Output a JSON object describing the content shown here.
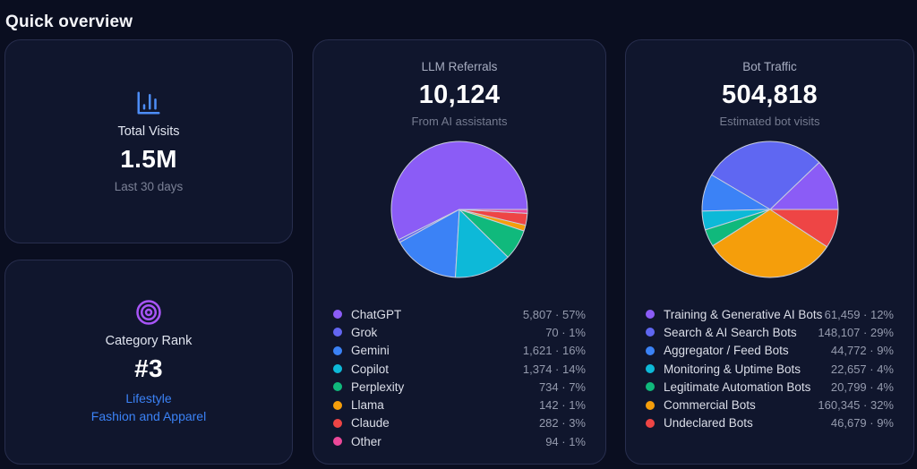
{
  "page": {
    "title": "Quick overview"
  },
  "stats": {
    "total_visits": {
      "label": "Total Visits",
      "value": "1.5M",
      "sub": "Last 30 days",
      "icon_color": "#4d8df7"
    },
    "category_rank": {
      "label": "Category Rank",
      "value": "#3",
      "link_primary": "Lifestyle",
      "link_secondary": "Fashion and Apparel",
      "icon_color": "#a855f7"
    }
  },
  "chart_data": [
    {
      "type": "pie",
      "title": "LLM Referrals",
      "total_display": "10,124",
      "subtitle": "From AI assistants",
      "start_angle_deg": 0,
      "direction": "counterclockwise",
      "legend_position": "bottom",
      "slices": [
        {
          "label": "ChatGPT",
          "value": 5807,
          "pct": 57,
          "display": "5,807 · 57%",
          "color": "#8b5cf6"
        },
        {
          "label": "Grok",
          "value": 70,
          "pct": 1,
          "display": "70 · 1%",
          "color": "#6366f1"
        },
        {
          "label": "Gemini",
          "value": 1621,
          "pct": 16,
          "display": "1,621 · 16%",
          "color": "#3b82f6"
        },
        {
          "label": "Copilot",
          "value": 1374,
          "pct": 14,
          "display": "1,374 · 14%",
          "color": "#0db9d8"
        },
        {
          "label": "Perplexity",
          "value": 734,
          "pct": 7,
          "display": "734 · 7%",
          "color": "#10b97c"
        },
        {
          "label": "Llama",
          "value": 142,
          "pct": 1,
          "display": "142 · 1%",
          "color": "#f59e0b"
        },
        {
          "label": "Claude",
          "value": 282,
          "pct": 3,
          "display": "282 · 3%",
          "color": "#ee4545"
        },
        {
          "label": "Other",
          "value": 94,
          "pct": 1,
          "display": "94 · 1%",
          "color": "#ec4899"
        }
      ]
    },
    {
      "type": "pie",
      "title": "Bot Traffic",
      "total_display": "504,818",
      "subtitle": "Estimated bot visits",
      "start_angle_deg": 0,
      "direction": "counterclockwise",
      "legend_position": "bottom",
      "slices": [
        {
          "label": "Training & Generative AI Bots",
          "value": 61459,
          "pct": 12,
          "display": "61,459 · 12%",
          "color": "#8b5cf6"
        },
        {
          "label": "Search & AI Search Bots",
          "value": 148107,
          "pct": 29,
          "display": "148,107 · 29%",
          "color": "#5f67f2"
        },
        {
          "label": "Aggregator / Feed Bots",
          "value": 44772,
          "pct": 9,
          "display": "44,772 · 9%",
          "color": "#3b82f6"
        },
        {
          "label": "Monitoring & Uptime Bots",
          "value": 22657,
          "pct": 4,
          "display": "22,657 · 4%",
          "color": "#0db9d8"
        },
        {
          "label": "Legitimate Automation Bots",
          "value": 20799,
          "pct": 4,
          "display": "20,799 · 4%",
          "color": "#10b97c"
        },
        {
          "label": "Commercial Bots",
          "value": 160345,
          "pct": 32,
          "display": "160,345 · 32%",
          "color": "#f59e0b"
        },
        {
          "label": "Undeclared Bots",
          "value": 46679,
          "pct": 9,
          "display": "46,679 · 9%",
          "color": "#ee4545"
        }
      ]
    }
  ],
  "colors": {
    "page_bg": "#0a0e20",
    "card_bg": "#10162d",
    "card_border": "#282e4e",
    "slice_stroke": "#c9cede",
    "link_blue": "#3b82f6"
  }
}
